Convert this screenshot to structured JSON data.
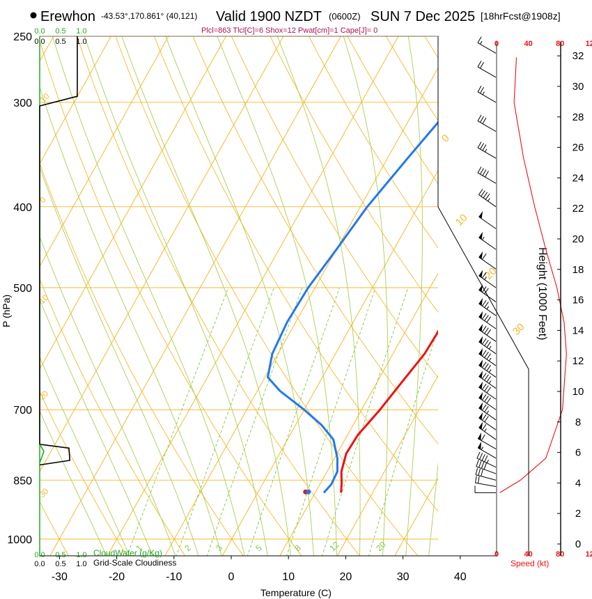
{
  "header": {
    "station": "Erewhon",
    "coords": "-43.53°,170.861° (40,121)",
    "valid": "Valid 1900 NZDT",
    "utc": "(0600Z)",
    "date": "SUN 7 Dec 2025",
    "fcst": "[18hrFcst@1908z]",
    "indices": "Plcl=863 Tlcl[C]=6 Shox=12 Pwat[cm]=1 Cape[J]= 0"
  },
  "colors": {
    "temperature": "#ee1111",
    "dewpoint": "#2277ee",
    "isotherm": "#f5b82e",
    "dry_adiabat": "#f5b82e",
    "moist_adiabat": "#a8d050",
    "mixing_ratio": "#7cc83a",
    "cloud_water": "#22aa22",
    "speed_profile": "#ee1111",
    "indices_text": "#aa1155"
  },
  "chart_data": {
    "type": "skewt",
    "title": "Erewhon skew-T log-P sounding",
    "xlabel": "Temperature (C)",
    "ylabel": "P (hPa)",
    "y2label": "Height (1000 Feet)",
    "pressure_ticks": [
      250,
      300,
      400,
      500,
      700,
      850,
      1000
    ],
    "temperature_ticks": [
      -30,
      -20,
      -10,
      0,
      10,
      20,
      30,
      40
    ],
    "height_ticks_kft": [
      0,
      2,
      4,
      6,
      8,
      10,
      12,
      14,
      16,
      18,
      20,
      22,
      24,
      26,
      28,
      30,
      32
    ],
    "isotherm_labels": [
      "-30",
      "-20",
      "-10",
      "0",
      "10",
      "20",
      "30"
    ],
    "mixing_ratio_labels": [
      "1",
      "2",
      "3",
      "5",
      "8",
      "12",
      "20"
    ],
    "temperature_profile": [
      {
        "p": 880,
        "t": 14.5
      },
      {
        "p": 860,
        "t": 13.8
      },
      {
        "p": 830,
        "t": 12.5
      },
      {
        "p": 790,
        "t": 11.6
      },
      {
        "p": 750,
        "t": 11.8
      },
      {
        "p": 700,
        "t": 13.2
      },
      {
        "p": 650,
        "t": 14.3
      },
      {
        "p": 600,
        "t": 15.5
      },
      {
        "p": 550,
        "t": 15.8
      },
      {
        "p": 500,
        "t": 15.2
      },
      {
        "p": 450,
        "t": 13.0
      },
      {
        "p": 400,
        "t": 9.8
      },
      {
        "p": 350,
        "t": 5.0
      },
      {
        "p": 300,
        "t": 0.0
      },
      {
        "p": 262,
        "t": -4.5
      }
    ],
    "dewpoint_profile": [
      {
        "p": 880,
        "t": 11.5
      },
      {
        "p": 860,
        "t": 12.0
      },
      {
        "p": 830,
        "t": 11.8
      },
      {
        "p": 800,
        "t": 10.5
      },
      {
        "p": 760,
        "t": 8.0
      },
      {
        "p": 730,
        "t": 4.5
      },
      {
        "p": 700,
        "t": 0.0
      },
      {
        "p": 665,
        "t": -6.0
      },
      {
        "p": 640,
        "t": -9.5
      },
      {
        "p": 600,
        "t": -11.0
      },
      {
        "p": 550,
        "t": -11.5
      },
      {
        "p": 500,
        "t": -11.2
      },
      {
        "p": 450,
        "t": -10.0
      },
      {
        "p": 400,
        "t": -8.8
      },
      {
        "p": 350,
        "t": -6.5
      },
      {
        "p": 305,
        "t": -4.0
      },
      {
        "p": 295,
        "t": -5.0
      },
      {
        "p": 262,
        "t": -8.5
      }
    ],
    "surface_parcel": {
      "p": 878,
      "t": 8.5
    },
    "cloud_panel": {
      "cloud_water_label": "CloudWater (g/Kg)",
      "cloudiness_label": "Grid-Scale Cloudiness",
      "cloud_water_ticks": [
        "0.0",
        "0.5",
        "1.0"
      ],
      "cloudiness_ticks": [
        "0.0",
        "0.5",
        "1.0"
      ],
      "cloudiness_profile": [
        {
          "p": 250,
          "v": 0.9
        },
        {
          "p": 295,
          "v": 0.9
        },
        {
          "p": 303,
          "v": 0.0
        },
        {
          "p": 770,
          "v": 0.0
        },
        {
          "p": 778,
          "v": 0.7
        },
        {
          "p": 805,
          "v": 0.72
        },
        {
          "p": 815,
          "v": 0.0
        }
      ],
      "cloud_water_profile": [
        {
          "p": 770,
          "v": 0.0
        },
        {
          "p": 785,
          "v": 0.1
        },
        {
          "p": 798,
          "v": 0.05
        },
        {
          "p": 810,
          "v": 0.0
        }
      ]
    },
    "speed_panel": {
      "label": "Speed (kt)",
      "ticks": [
        0,
        40,
        80,
        120
      ],
      "profile": [
        {
          "p": 880,
          "v": 4
        },
        {
          "p": 850,
          "v": 30
        },
        {
          "p": 800,
          "v": 62
        },
        {
          "p": 700,
          "v": 83
        },
        {
          "p": 600,
          "v": 88
        },
        {
          "p": 550,
          "v": 85
        },
        {
          "p": 500,
          "v": 76
        },
        {
          "p": 450,
          "v": 62
        },
        {
          "p": 400,
          "v": 48
        },
        {
          "p": 350,
          "v": 34
        },
        {
          "p": 300,
          "v": 22
        },
        {
          "p": 265,
          "v": 25
        }
      ]
    },
    "wind_barbs": [
      {
        "p": 880,
        "dir": 270,
        "spd": 10
      },
      {
        "p": 865,
        "dir": 280,
        "spd": 20
      },
      {
        "p": 850,
        "dir": 285,
        "spd": 30
      },
      {
        "p": 835,
        "dir": 290,
        "spd": 40
      },
      {
        "p": 820,
        "dir": 295,
        "spd": 45
      },
      {
        "p": 800,
        "dir": 300,
        "spd": 55
      },
      {
        "p": 780,
        "dir": 300,
        "spd": 60
      },
      {
        "p": 760,
        "dir": 305,
        "spd": 65
      },
      {
        "p": 740,
        "dir": 305,
        "spd": 70
      },
      {
        "p": 720,
        "dir": 305,
        "spd": 75
      },
      {
        "p": 700,
        "dir": 305,
        "spd": 80
      },
      {
        "p": 680,
        "dir": 305,
        "spd": 80
      },
      {
        "p": 660,
        "dir": 305,
        "spd": 85
      },
      {
        "p": 640,
        "dir": 305,
        "spd": 85
      },
      {
        "p": 620,
        "dir": 305,
        "spd": 85
      },
      {
        "p": 600,
        "dir": 305,
        "spd": 85
      },
      {
        "p": 580,
        "dir": 305,
        "spd": 80
      },
      {
        "p": 560,
        "dir": 305,
        "spd": 80
      },
      {
        "p": 540,
        "dir": 305,
        "spd": 75
      },
      {
        "p": 520,
        "dir": 305,
        "spd": 70
      },
      {
        "p": 500,
        "dir": 305,
        "spd": 65
      },
      {
        "p": 475,
        "dir": 305,
        "spd": 60
      },
      {
        "p": 450,
        "dir": 305,
        "spd": 55
      },
      {
        "p": 425,
        "dir": 305,
        "spd": 50
      },
      {
        "p": 400,
        "dir": 305,
        "spd": 45
      },
      {
        "p": 375,
        "dir": 300,
        "spd": 40
      },
      {
        "p": 350,
        "dir": 300,
        "spd": 35
      },
      {
        "p": 325,
        "dir": 300,
        "spd": 30
      },
      {
        "p": 300,
        "dir": 300,
        "spd": 25
      },
      {
        "p": 280,
        "dir": 300,
        "spd": 20
      },
      {
        "p": 262,
        "dir": 300,
        "spd": 15
      }
    ]
  }
}
